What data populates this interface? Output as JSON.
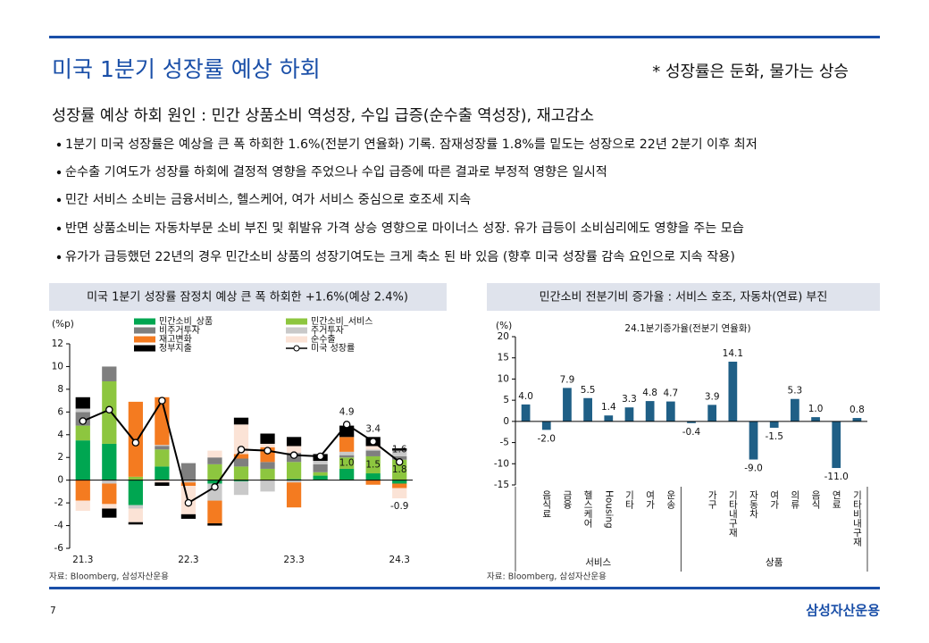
{
  "header": {
    "title": "미국 1분기 성장률 예상 하회",
    "note": "* 성장률은 둔화, 물가는 상승"
  },
  "subtitle": "성장률 예상 하회 원인 : 민간 상품소비 역성장, 수입 급증(순수출 역성장), 재고감소",
  "bullets": [
    "1분기 미국 성장률은 예상을 큰 폭 하회한 1.6%(전분기 연율화) 기록. 잠재성장률 1.8%를 밑도는 성장으로 22년 2분기 이후 최저",
    "순수출 기여도가 성장률 하회에 결정적 영향을 주었으나 수입 급증에 따른 결과로 부정적 영향은 일시적",
    "민간 서비스 소비는 금융서비스, 헬스케어, 여가 서비스 중심으로 호조세 지속",
    "반면 상품소비는 자동차부문 소비 부진 및 휘발유 가격 상승 영향으로 마이너스 성장. 유가 급등이 소비심리에도 영향을 주는 모습",
    "유가가 급등했던 22년의 경우 민간소비 상품의 성장기여도는 크게 축소 된 바 있음 (향후 미국 성장률 감속 요인으로 지속 작용)"
  ],
  "chart_data": [
    {
      "type": "bar",
      "stacked": true,
      "title": "미국 1분기 성장률 잠정치 예상 큰 폭 하회한 +1.6%(예상 2.4%)",
      "y_label": "(%p)",
      "source": "자료: Bloomberg, 삼성자산운용",
      "categories": [
        "21.3",
        null,
        null,
        null,
        "22.3",
        null,
        null,
        null,
        "23.3",
        null,
        null,
        null,
        "24.3"
      ],
      "ylim": [
        -6,
        12
      ],
      "yticks": [
        -6,
        -4,
        -2,
        0,
        2,
        4,
        6,
        8,
        10,
        12
      ],
      "legend": true,
      "series": [
        {
          "name": "민간소비_상품",
          "color": "#00a651",
          "values": [
            3.5,
            3.2,
            -2.2,
            1.2,
            0.0,
            -0.3,
            -0.1,
            0.0,
            0.1,
            0.4,
            1.0,
            0.6,
            -0.3
          ]
        },
        {
          "name": "민간소비_서비스",
          "color": "#8dc63f",
          "values": [
            1.3,
            5.5,
            0.3,
            1.5,
            0.0,
            1.4,
            1.2,
            1.0,
            1.5,
            0.3,
            1.0,
            1.5,
            1.8
          ],
          "value_labels": [
            null,
            null,
            null,
            null,
            null,
            null,
            null,
            null,
            null,
            null,
            "1.0",
            "1.5",
            "1.8"
          ]
        },
        {
          "name": "비주거투자",
          "color": "#7f7f7f",
          "values": [
            1.2,
            1.3,
            0.0,
            0.3,
            1.5,
            0.6,
            0.7,
            0.6,
            0.8,
            0.7,
            0.2,
            0.5,
            0.3
          ]
        },
        {
          "name": "주거투자",
          "color": "#c9c9c9",
          "values": [
            0.3,
            -0.3,
            -0.3,
            0.1,
            -0.2,
            -1.5,
            -1.2,
            -1.0,
            -0.2,
            0.3,
            0.3,
            0.1,
            0.5
          ]
        },
        {
          "name": "재고변화",
          "color": "#f47b20",
          "values": [
            -1.8,
            -1.8,
            6.6,
            4.2,
            -0.3,
            -2.0,
            0.4,
            1.3,
            -2.2,
            0.0,
            1.3,
            -0.4,
            -0.4
          ]
        },
        {
          "name": "순수출",
          "color": "#fbe3d6",
          "values": [
            -0.9,
            -0.4,
            -1.2,
            -0.2,
            -2.5,
            0.6,
            2.6,
            0.3,
            0.6,
            0.0,
            0.0,
            0.3,
            -0.9
          ],
          "value_labels": [
            null,
            null,
            null,
            null,
            null,
            null,
            null,
            null,
            null,
            null,
            null,
            null,
            "-0.9"
          ]
        },
        {
          "name": "정부지출",
          "color": "#000000",
          "values": [
            1.0,
            -0.8,
            -0.2,
            -0.3,
            -0.4,
            -0.2,
            0.6,
            0.9,
            0.8,
            0.6,
            1.0,
            0.8,
            0.2
          ]
        },
        {
          "name": "미국 성장률",
          "type": "line",
          "color": "#000000",
          "values": [
            5.2,
            6.2,
            3.3,
            7.0,
            -2.0,
            -0.6,
            2.7,
            2.6,
            2.2,
            2.1,
            4.9,
            3.4,
            1.6
          ],
          "value_labels": [
            null,
            null,
            null,
            null,
            null,
            null,
            null,
            null,
            null,
            null,
            "4.9",
            "3.4",
            "1.6"
          ]
        }
      ]
    },
    {
      "type": "bar",
      "title": "민간소비 전분기비 증가율 : 서비스 호조, 자동차(연료) 부진",
      "subtitle": "24.1분기증가율(전분기 연율화)",
      "y_label": "(%)",
      "source": "자료: Bloomberg, 삼성자산운용",
      "categories": [
        null,
        "음식료",
        "금융",
        "헬스케어",
        "Housing",
        "기타",
        "여가",
        "운송",
        null,
        "가구",
        "기타내구재",
        "자동차",
        "여가",
        "의류",
        "음식",
        "연료",
        "기타비내구재"
      ],
      "groups": [
        {
          "label": "서비스"
        },
        {
          "label": "상품"
        }
      ],
      "values": [
        4.0,
        -2.0,
        7.9,
        5.5,
        1.4,
        3.3,
        4.8,
        4.7,
        -0.4,
        3.9,
        14.1,
        -9.0,
        -1.5,
        5.3,
        1.0,
        -11.0,
        0.8
      ],
      "value_labels": [
        "4.0",
        "-2.0",
        "7.9",
        "5.5",
        "1.4",
        "3.3",
        "4.8",
        "4.7",
        "-0.4",
        "3.9",
        "14.1",
        "-9.0",
        "-1.5",
        "5.3",
        "1.0",
        "-11.0",
        "0.8"
      ],
      "color": "#1f5f86",
      "ylim": [
        -15,
        20
      ],
      "yticks": [
        -15,
        -10,
        -5,
        0,
        5,
        10,
        15,
        20
      ]
    }
  ],
  "footer": {
    "page": "7",
    "brand": "삼성자산운용"
  }
}
